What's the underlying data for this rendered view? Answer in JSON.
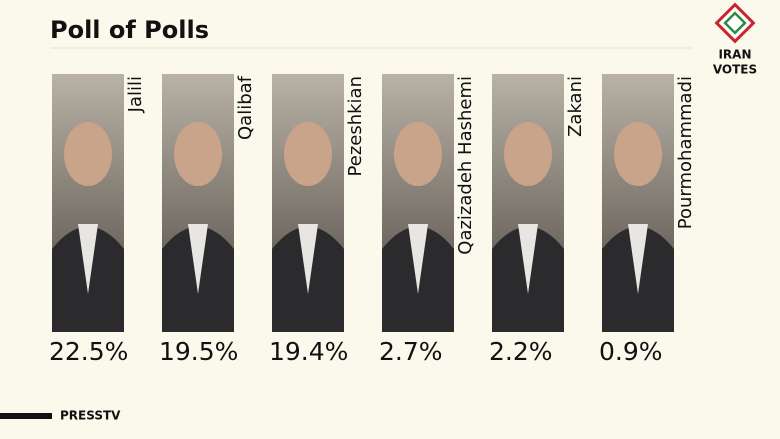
{
  "chart_data": {
    "type": "poll",
    "title": "Poll of Polls",
    "categories": [
      "Jalili",
      "Qalibaf",
      "Pezeshkian",
      "Qazizadeh Hashemi",
      "Zakani",
      "Pourmohammadi"
    ],
    "values": [
      22.5,
      19.5,
      19.4,
      2.7,
      2.2,
      0.9
    ],
    "value_labels": [
      "22.5%",
      "19.5%",
      "19.4%",
      "2.7%",
      "2.2%",
      "0.9%"
    ]
  },
  "logo": {
    "line1": "IRAN",
    "line2": "VOTES"
  },
  "footer": {
    "brand": "PRESSTV"
  }
}
